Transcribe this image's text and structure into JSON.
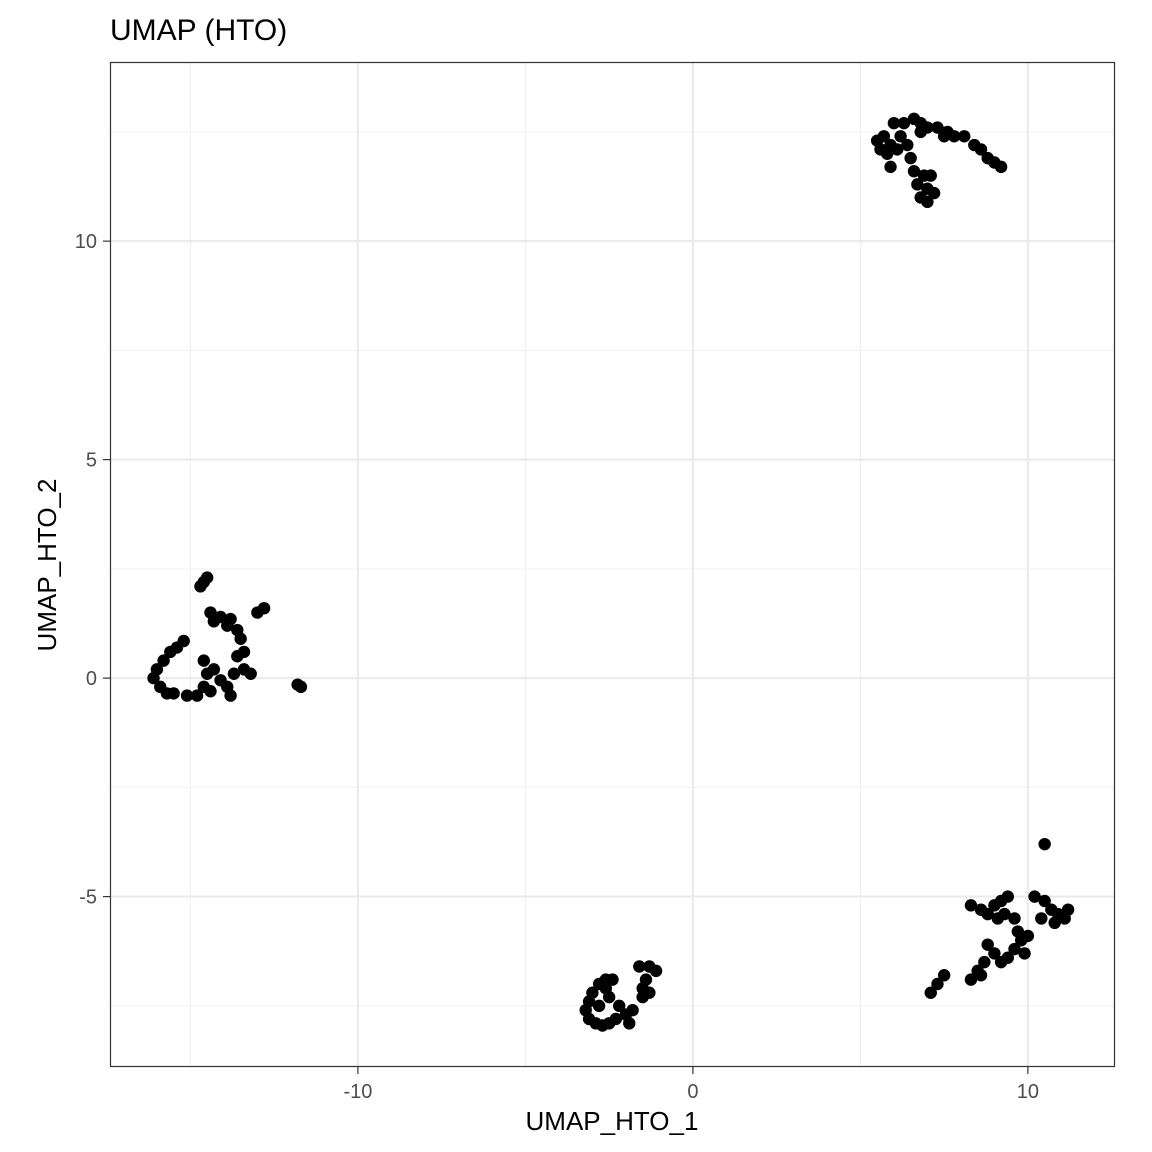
{
  "chart_data": {
    "type": "scatter",
    "title": "UMAP (HTO)",
    "xlabel": "UMAP_HTO_1",
    "ylabel": "UMAP_HTO_2",
    "xlim": [
      -17.4,
      12.6
    ],
    "ylim": [
      -8.9,
      14.1
    ],
    "xticks": [
      -10,
      0,
      10
    ],
    "xtick_labels": [
      "-10",
      "0",
      "10"
    ],
    "yticks": [
      -5,
      0,
      5,
      10
    ],
    "ytick_labels": [
      "-5",
      "0",
      "5",
      "10"
    ],
    "grid": true,
    "legend": "none",
    "point_color": "#000000",
    "series": [
      {
        "values": [
          [
            6.0,
            12.7
          ],
          [
            6.3,
            12.7
          ],
          [
            6.6,
            12.8
          ],
          [
            6.8,
            12.7
          ],
          [
            7.0,
            12.6
          ],
          [
            7.3,
            12.6
          ],
          [
            7.6,
            12.5
          ],
          [
            7.8,
            12.4
          ],
          [
            8.1,
            12.4
          ],
          [
            8.4,
            12.2
          ],
          [
            8.6,
            12.1
          ],
          [
            8.8,
            11.9
          ],
          [
            9.0,
            11.8
          ],
          [
            9.2,
            11.7
          ],
          [
            5.5,
            12.3
          ],
          [
            5.6,
            12.1
          ],
          [
            5.8,
            12.0
          ],
          [
            5.7,
            12.4
          ],
          [
            5.9,
            12.2
          ],
          [
            6.1,
            12.1
          ],
          [
            6.2,
            12.4
          ],
          [
            6.4,
            12.2
          ],
          [
            6.5,
            11.9
          ],
          [
            5.9,
            11.7
          ],
          [
            6.6,
            11.6
          ],
          [
            6.7,
            11.3
          ],
          [
            6.9,
            11.5
          ],
          [
            7.1,
            11.5
          ],
          [
            7.0,
            11.2
          ],
          [
            6.8,
            11.0
          ],
          [
            7.2,
            11.1
          ],
          [
            7.0,
            10.9
          ],
          [
            6.8,
            12.5
          ],
          [
            7.5,
            12.4
          ]
        ]
      },
      {
        "values": [
          [
            -14.5,
            2.3
          ],
          [
            -14.6,
            2.2
          ],
          [
            -14.7,
            2.1
          ],
          [
            -14.4,
            1.5
          ],
          [
            -14.3,
            1.3
          ],
          [
            -14.1,
            1.4
          ],
          [
            -13.9,
            1.2
          ],
          [
            -13.8,
            1.35
          ],
          [
            -13.6,
            1.1
          ],
          [
            -13.5,
            0.9
          ],
          [
            -13.6,
            0.5
          ],
          [
            -13.4,
            0.6
          ],
          [
            -13.7,
            0.1
          ],
          [
            -13.4,
            0.2
          ],
          [
            -13.2,
            0.1
          ],
          [
            -13.0,
            1.5
          ],
          [
            -12.8,
            1.6
          ],
          [
            -15.2,
            0.85
          ],
          [
            -15.4,
            0.7
          ],
          [
            -15.6,
            0.6
          ],
          [
            -15.8,
            0.4
          ],
          [
            -16.0,
            0.2
          ],
          [
            -16.1,
            0.0
          ],
          [
            -15.9,
            -0.2
          ],
          [
            -15.7,
            -0.35
          ],
          [
            -15.5,
            -0.35
          ],
          [
            -15.1,
            -0.4
          ],
          [
            -14.8,
            -0.4
          ],
          [
            -14.6,
            -0.2
          ],
          [
            -14.5,
            0.1
          ],
          [
            -14.4,
            -0.3
          ],
          [
            -14.1,
            -0.05
          ],
          [
            -13.9,
            -0.2
          ],
          [
            -13.8,
            -0.4
          ],
          [
            -14.6,
            0.4
          ],
          [
            -14.3,
            0.2
          ],
          [
            -11.8,
            -0.15
          ],
          [
            -11.7,
            -0.2
          ]
        ]
      },
      {
        "values": [
          [
            -1.3,
            -6.6
          ],
          [
            -1.1,
            -6.7
          ],
          [
            -1.4,
            -6.9
          ],
          [
            -1.5,
            -7.1
          ],
          [
            -1.5,
            -7.3
          ],
          [
            -1.3,
            -7.2
          ],
          [
            -1.8,
            -7.6
          ],
          [
            -1.9,
            -7.9
          ],
          [
            -2.0,
            -7.7
          ],
          [
            -2.2,
            -7.5
          ],
          [
            -2.5,
            -7.3
          ],
          [
            -2.6,
            -7.1
          ],
          [
            -2.8,
            -7.0
          ],
          [
            -3.0,
            -7.2
          ],
          [
            -3.1,
            -7.4
          ],
          [
            -3.2,
            -7.6
          ],
          [
            -3.1,
            -7.8
          ],
          [
            -2.9,
            -7.9
          ],
          [
            -2.7,
            -7.95
          ],
          [
            -2.5,
            -7.9
          ],
          [
            -2.3,
            -7.8
          ],
          [
            -2.8,
            -7.5
          ],
          [
            -2.4,
            -6.9
          ],
          [
            -2.6,
            -6.9
          ],
          [
            -1.6,
            -6.6
          ]
        ]
      },
      {
        "values": [
          [
            10.5,
            -3.8
          ],
          [
            8.3,
            -5.2
          ],
          [
            8.6,
            -5.3
          ],
          [
            8.8,
            -5.4
          ],
          [
            9.0,
            -5.2
          ],
          [
            9.2,
            -5.1
          ],
          [
            9.4,
            -5.0
          ],
          [
            9.3,
            -5.4
          ],
          [
            9.6,
            -5.5
          ],
          [
            9.7,
            -5.8
          ],
          [
            9.8,
            -6.0
          ],
          [
            9.6,
            -6.2
          ],
          [
            9.4,
            -6.4
          ],
          [
            9.2,
            -6.5
          ],
          [
            9.0,
            -6.3
          ],
          [
            8.8,
            -6.1
          ],
          [
            8.7,
            -6.5
          ],
          [
            8.5,
            -6.7
          ],
          [
            8.3,
            -6.9
          ],
          [
            10.2,
            -5.0
          ],
          [
            10.5,
            -5.1
          ],
          [
            10.7,
            -5.3
          ],
          [
            10.9,
            -5.4
          ],
          [
            11.1,
            -5.5
          ],
          [
            11.2,
            -5.3
          ],
          [
            10.8,
            -5.6
          ],
          [
            10.0,
            -5.9
          ],
          [
            9.9,
            -6.3
          ],
          [
            7.1,
            -7.2
          ],
          [
            7.3,
            -7.0
          ],
          [
            7.5,
            -6.8
          ],
          [
            9.1,
            -5.5
          ],
          [
            10.4,
            -5.5
          ],
          [
            8.6,
            -6.8
          ]
        ]
      }
    ]
  }
}
